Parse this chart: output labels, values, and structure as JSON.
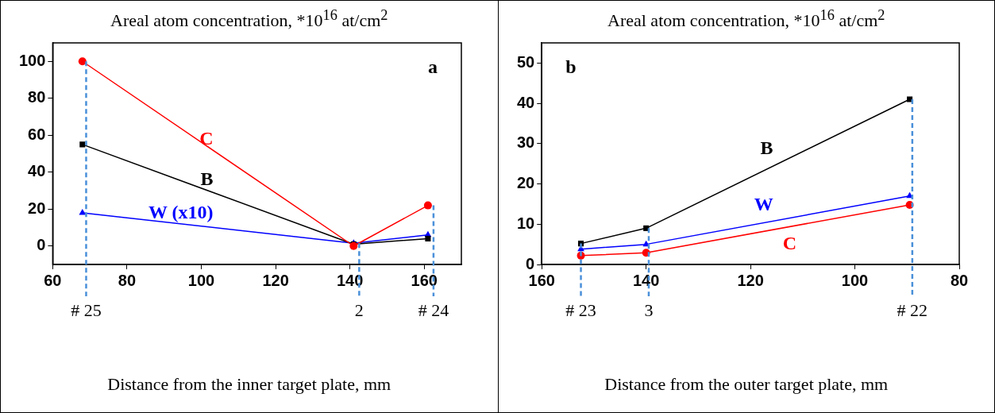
{
  "chart_data": [
    {
      "type": "line",
      "ylabel": "Areal atom concentration, *10$^{16}$ at/cm$^{2}$",
      "xlabel": "Distance from the inner target plate, mm",
      "annotations": [
        "# 25",
        "2",
        "# 24",
        "a"
      ],
      "xlim": [
        60,
        170
      ],
      "xticks": [
        60,
        80,
        100,
        120,
        140,
        160
      ],
      "ylim": [
        -10,
        110
      ],
      "yticks": [
        0,
        20,
        40,
        60,
        80,
        100
      ],
      "grid": false,
      "legend": false,
      "series": [
        {
          "name": "C",
          "color": "#ff0000",
          "marker": "circle",
          "x": [
            68,
            141,
            161
          ],
          "values": [
            100,
            0,
            22
          ]
        },
        {
          "name": "B",
          "color": "#000000",
          "marker": "square",
          "x": [
            68,
            141,
            161
          ],
          "values": [
            55,
            1,
            4
          ]
        },
        {
          "name": "W (x10)",
          "color": "#0000ff",
          "marker": "triangle",
          "x": [
            68,
            141,
            161
          ],
          "values": [
            18,
            1.5,
            6
          ]
        }
      ],
      "ref_lines": [
        {
          "axis": "x",
          "value": 69,
          "color": "#4a90d9",
          "line_style": "dashed"
        },
        {
          "axis": "x",
          "value": 142.5,
          "color": "#4a90d9",
          "line_style": "dashed"
        },
        {
          "axis": "x",
          "value": 162.5,
          "color": "#4a90d9",
          "line_style": "dashed"
        }
      ]
    },
    {
      "type": "line",
      "ylabel": "Areal atom concentration, *10$^{16}$ at/cm$^{2}$",
      "xlabel": "Distance from the outer target plate, mm",
      "annotations": [
        "# 23",
        "3",
        "# 22",
        "b"
      ],
      "xlim": [
        160,
        80
      ],
      "xticks": [
        160,
        140,
        120,
        100,
        80
      ],
      "ylim": [
        0,
        55
      ],
      "yticks": [
        0,
        10,
        20,
        30,
        40,
        50
      ],
      "grid": false,
      "legend": false,
      "series": [
        {
          "name": "B",
          "color": "#000000",
          "marker": "square",
          "x": [
            152.5,
            140,
            89.5
          ],
          "values": [
            5.2,
            9,
            41
          ]
        },
        {
          "name": "W",
          "color": "#0000ff",
          "marker": "triangle",
          "x": [
            152.5,
            140,
            89.5
          ],
          "values": [
            3.8,
            5,
            17
          ]
        },
        {
          "name": "C",
          "color": "#ff0000",
          "marker": "circle",
          "x": [
            152.5,
            140,
            89.5
          ],
          "values": [
            2.2,
            2.9,
            14.8
          ]
        }
      ],
      "ref_lines": [
        {
          "axis": "x",
          "value": 152.5,
          "color": "#4a90d9",
          "line_style": "dashed"
        },
        {
          "axis": "x",
          "value": 139.5,
          "color": "#4a90d9",
          "line_style": "dashed"
        },
        {
          "axis": "x",
          "value": 89,
          "color": "#4a90d9",
          "line_style": "dashed"
        }
      ]
    }
  ]
}
